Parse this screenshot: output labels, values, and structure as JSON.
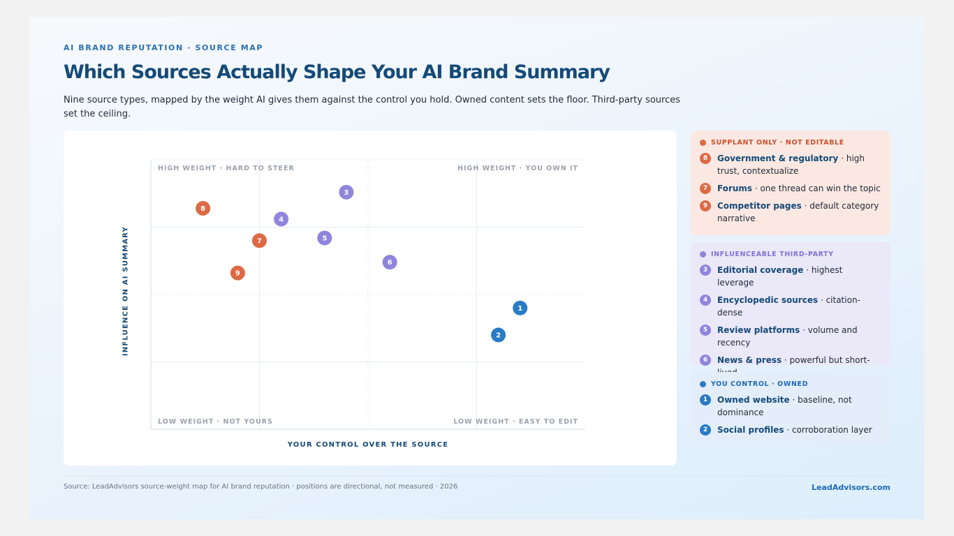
{
  "eyebrow": "AI BRAND REPUTATION · SOURCE MAP",
  "title": "Which Sources Actually Shape Your AI Brand Summary",
  "subtitle": "Nine source types, mapped by the weight AI gives them against the control you hold. Owned content sets the floor. Third-party sources set the ceiling.",
  "colors": {
    "red": "#dd6a45",
    "purple": "#8f85dd",
    "blue": "#2a7bc5"
  },
  "chart_data": {
    "type": "scatter",
    "title": "",
    "xlabel": "YOUR CONTROL OVER THE SOURCE",
    "ylabel": "INFLUENCE ON AI SUMMARY",
    "xlim": [
      0,
      100
    ],
    "ylim": [
      0,
      100
    ],
    "grid": true,
    "quadrants": {
      "top_left": "HIGH WEIGHT · HARD TO STEER",
      "top_right": "HIGH WEIGHT · YOU OWN IT",
      "bottom_left": "LOW WEIGHT · NOT YOURS",
      "bottom_right": "LOW WEIGHT · EASY TO EDIT"
    },
    "points": [
      {
        "label": "1",
        "group": "blue",
        "x": 85,
        "y": 45
      },
      {
        "label": "2",
        "group": "blue",
        "x": 80,
        "y": 35
      },
      {
        "label": "3",
        "group": "purple",
        "x": 45,
        "y": 88
      },
      {
        "label": "4",
        "group": "purple",
        "x": 30,
        "y": 78
      },
      {
        "label": "5",
        "group": "purple",
        "x": 40,
        "y": 71
      },
      {
        "label": "6",
        "group": "purple",
        "x": 55,
        "y": 62
      },
      {
        "label": "7",
        "group": "red",
        "x": 25,
        "y": 70
      },
      {
        "label": "8",
        "group": "red",
        "x": 12,
        "y": 82
      },
      {
        "label": "9",
        "group": "red",
        "x": 20,
        "y": 58
      }
    ]
  },
  "legend": [
    {
      "key": "red",
      "title": "SUPPLANT ONLY · NOT EDITABLE",
      "items": [
        {
          "num": "8",
          "name": "Government & regulatory",
          "desc": " · high trust, contextualize"
        },
        {
          "num": "7",
          "name": "Forums",
          "desc": " · one thread can win the topic"
        },
        {
          "num": "9",
          "name": "Competitor pages",
          "desc": " · default category narrative"
        }
      ]
    },
    {
      "key": "purple",
      "title": "INFLUENCEABLE THIRD-PARTY",
      "items": [
        {
          "num": "3",
          "name": "Editorial coverage",
          "desc": " · highest leverage"
        },
        {
          "num": "4",
          "name": "Encyclopedic sources",
          "desc": " · citation-dense"
        },
        {
          "num": "5",
          "name": "Review platforms",
          "desc": " · volume and recency"
        },
        {
          "num": "6",
          "name": "News & press",
          "desc": " · powerful but short-lived"
        }
      ]
    },
    {
      "key": "blue",
      "title": "YOU CONTROL · OWNED",
      "items": [
        {
          "num": "1",
          "name": "Owned website",
          "desc": " · baseline, not dominance"
        },
        {
          "num": "2",
          "name": "Social profiles",
          "desc": " · corroboration layer"
        }
      ]
    }
  ],
  "footer": {
    "source": "Source: LeadAdvisors source-weight map for AI brand reputation · positions are directional, not measured · 2026",
    "brand": "LeadAdvisors.com"
  }
}
